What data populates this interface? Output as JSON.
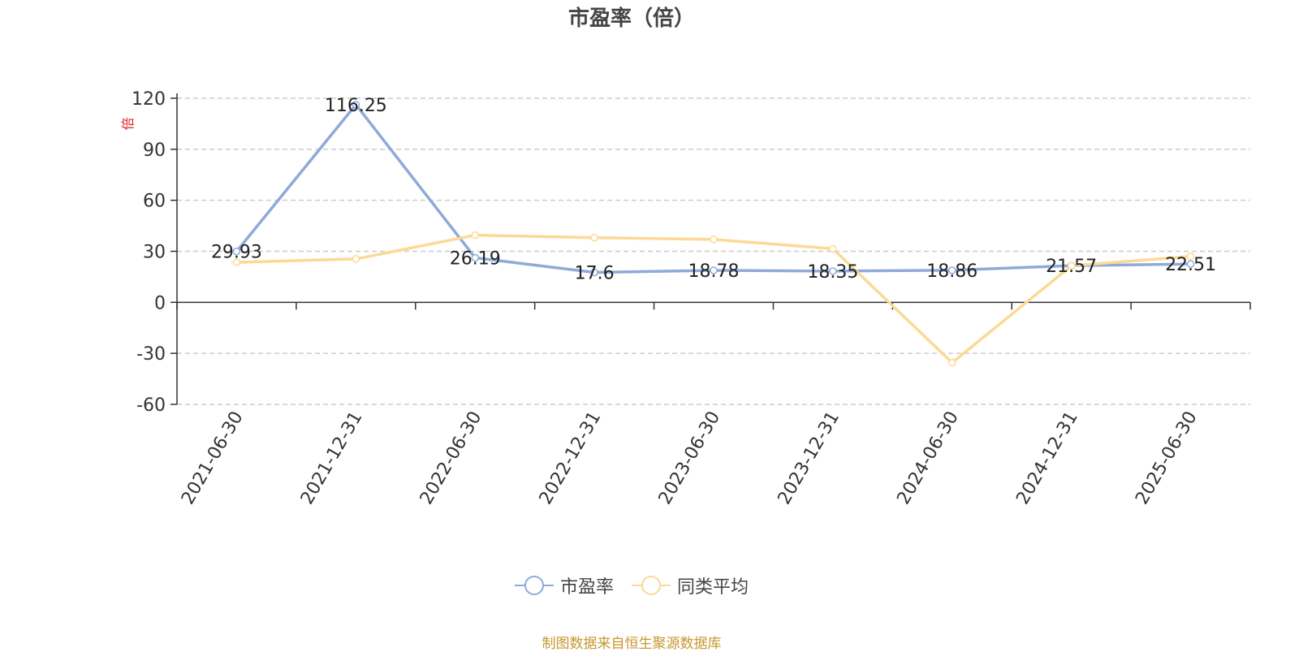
{
  "colors": {
    "series1": "#8eaad8",
    "series2": "#fcd994",
    "unit_label": "#e02020",
    "source": "#c8962e"
  },
  "chart_data": {
    "type": "line",
    "title": "市盈率（倍）",
    "ylabel": "倍",
    "xlabel": "",
    "ylim": [
      -60,
      120
    ],
    "yticks": [
      -60,
      -30,
      0,
      30,
      60,
      90,
      120
    ],
    "grid": true,
    "legend_position": "bottom",
    "x": [
      "2021-06-30",
      "2021-12-31",
      "2022-06-30",
      "2022-12-31",
      "2023-06-30",
      "2023-12-31",
      "2024-06-30",
      "2024-12-31",
      "2025-06-30"
    ],
    "series": [
      {
        "name": "市盈率",
        "values": [
          29.93,
          116.25,
          26.19,
          17.6,
          18.78,
          18.35,
          18.86,
          21.57,
          22.51
        ],
        "labels": [
          "29.93",
          "116.25",
          "26.19",
          "17.6",
          "18.78",
          "18.35",
          "18.86",
          "21.57",
          "22.51"
        ]
      },
      {
        "name": "同类平均",
        "values": [
          23.5,
          25.5,
          39.5,
          38,
          37,
          31.5,
          -35.5,
          21.5,
          27
        ]
      }
    ]
  },
  "source": "制图数据来自恒生聚源数据库"
}
